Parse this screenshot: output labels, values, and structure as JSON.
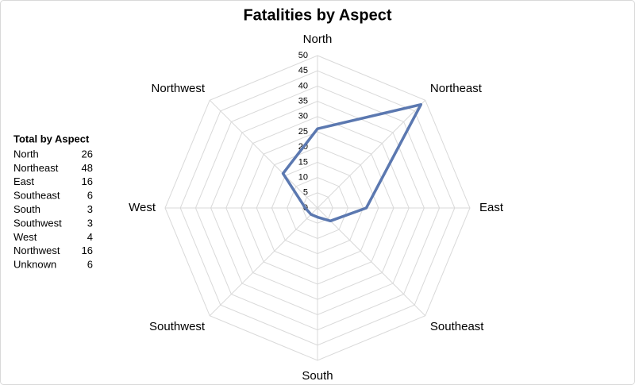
{
  "chart_data": {
    "type": "radar",
    "title": "Fatalities by Aspect",
    "categories": [
      "North",
      "Northeast",
      "East",
      "Southeast",
      "South",
      "Southwest",
      "West",
      "Northwest"
    ],
    "series": [
      {
        "name": "Fatalities",
        "color": "#5b78b0",
        "values": [
          26,
          48,
          16,
          6,
          3,
          3,
          4,
          16
        ]
      }
    ],
    "rlim": [
      0,
      50
    ],
    "rticks": [
      0,
      5,
      10,
      15,
      20,
      25,
      30,
      35,
      40,
      45,
      50
    ],
    "grid": true
  },
  "table": {
    "title": "Total by Aspect",
    "rows": [
      [
        "North",
        "26"
      ],
      [
        "Northeast",
        "48"
      ],
      [
        "East",
        "16"
      ],
      [
        "Southeast",
        "6"
      ],
      [
        "South",
        "3"
      ],
      [
        "Southwest",
        "3"
      ],
      [
        "West",
        "4"
      ],
      [
        "Northwest",
        "16"
      ],
      [
        "Unknown",
        "6"
      ]
    ]
  }
}
